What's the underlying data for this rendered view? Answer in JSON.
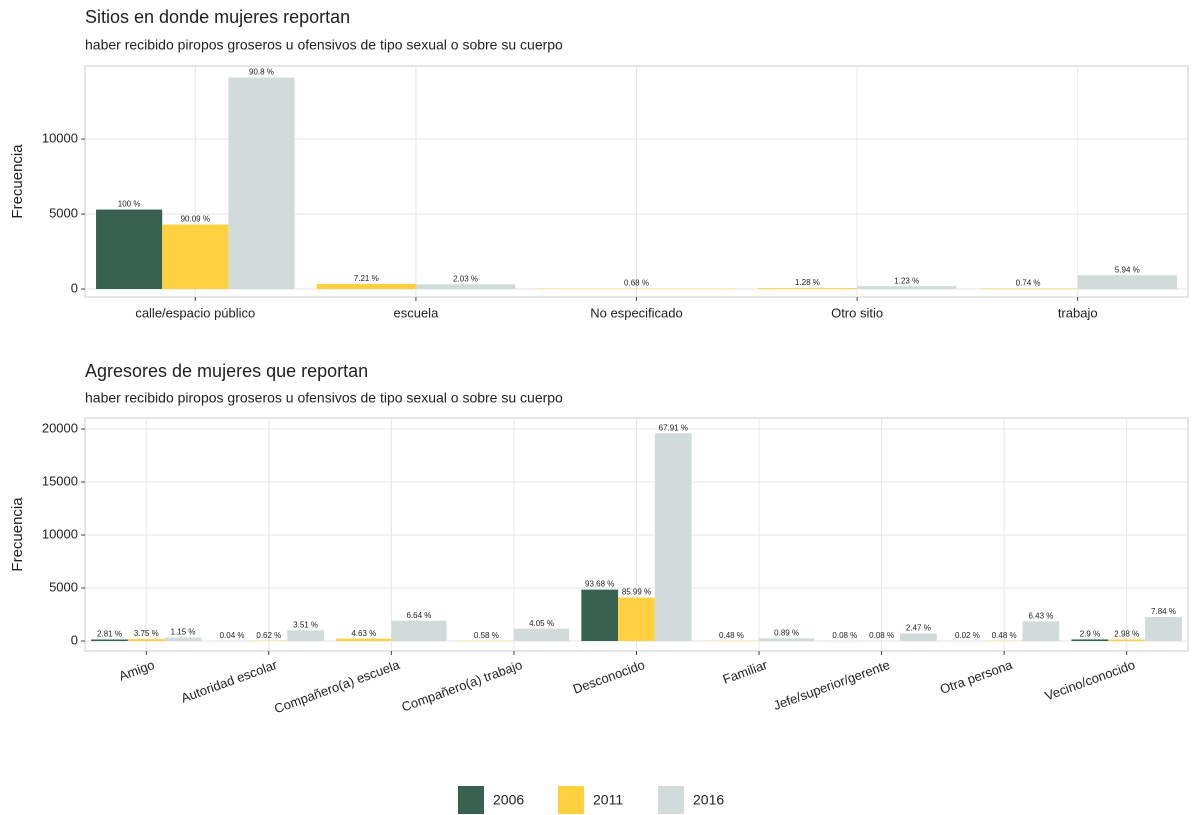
{
  "chart_data": [
    {
      "type": "bar",
      "title": "Sitios en donde mujeres reportan",
      "subtitle": "haber recibido piropos groseros u ofensivos de tipo sexual o sobre su cuerpo",
      "y_label": "Frecuencia",
      "categories": [
        "calle/espacio público",
        "escuela",
        "No especificado",
        "Otro sitio",
        "trabajo"
      ],
      "series": [
        {
          "name": "2006",
          "color": "#39614f",
          "values": [
            5300,
            null,
            null,
            null,
            null
          ],
          "labels": [
            "100 %",
            null,
            null,
            null,
            null
          ]
        },
        {
          "name": "2011",
          "color": "#ffd03f",
          "values": [
            4300,
            344,
            32,
            61,
            35
          ],
          "labels": [
            "90.09 %",
            "7.21 %",
            "0.68 %",
            "1.28 %",
            "0.74 %"
          ]
        },
        {
          "name": "2016",
          "color": "#d0dbda",
          "values": [
            14100,
            315,
            null,
            191,
            922
          ],
          "labels": [
            "90.8 %",
            "2.03 %",
            null,
            "1.23 %",
            "5.94 %"
          ]
        }
      ],
      "ylim": [
        -530,
        14870
      ],
      "yticks": [
        0,
        5000,
        10000
      ],
      "grid": true
    },
    {
      "type": "bar",
      "title": "Agresores de mujeres que reportan",
      "subtitle": "haber recibido piropos groseros u ofensivos de tipo sexual o sobre su cuerpo",
      "y_label": "Frecuencia",
      "categories": [
        "Amigo",
        "Autoridad escolar",
        "Compañero(a) escuela",
        "Compañero(a) trabajo",
        "Desconocido",
        "Familiar",
        "Jefe/superior/gerente",
        "Otra persona",
        "Vecino/conocido"
      ],
      "series": [
        {
          "name": "2006",
          "color": "#39614f",
          "values": [
            145,
            2,
            null,
            null,
            4850,
            null,
            4,
            1,
            150
          ],
          "labels": [
            "2.81 %",
            "0.04 %",
            null,
            null,
            "93.68 %",
            null,
            "0.08 %",
            "0.02 %",
            "2.9 %"
          ]
        },
        {
          "name": "2011",
          "color": "#ffd03f",
          "values": [
            179,
            30,
            221,
            28,
            4100,
            23,
            4,
            23,
            142
          ],
          "labels": [
            "3.75 %",
            "0.62 %",
            "4.63 %",
            "0.58 %",
            "85.99 %",
            "0.48 %",
            "0.08 %",
            "0.48 %",
            "2.98 %"
          ]
        },
        {
          "name": "2016",
          "color": "#d0dbda",
          "values": [
            332,
            1013,
            1916,
            1169,
            19600,
            257,
            713,
            1856,
            2263
          ],
          "labels": [
            "1.15 %",
            "3.51 %",
            "6.64 %",
            "4.05 %",
            "67.91 %",
            "0.89 %",
            "2.47 %",
            "6.43 %",
            "7.84 %"
          ]
        }
      ],
      "ylim": [
        -940,
        21040
      ],
      "yticks": [
        0,
        5000,
        10000,
        15000,
        20000
      ],
      "grid": true
    }
  ]
}
